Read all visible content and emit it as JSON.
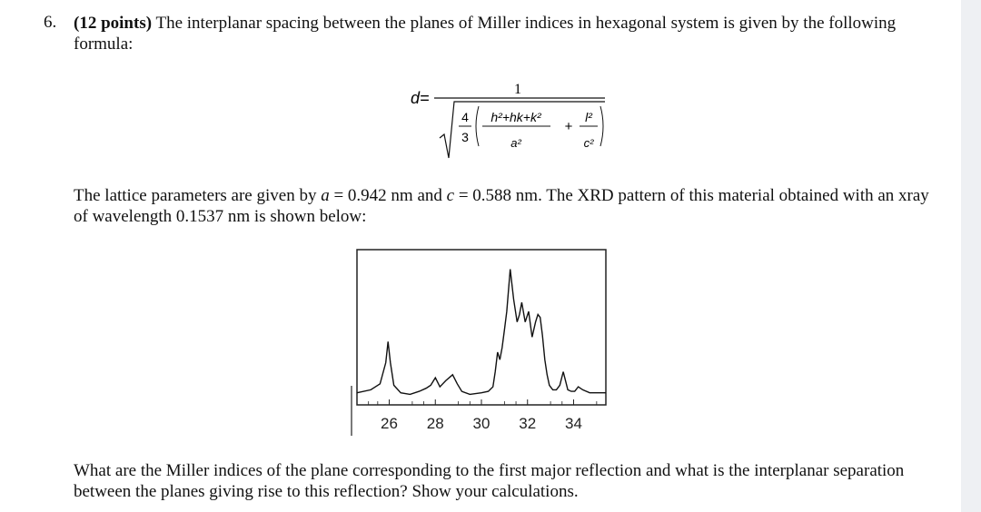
{
  "question": {
    "number": "6.",
    "points": "(12 points)",
    "intro_rest": "The interplanar spacing between the planes of Miller indices in hexagonal system is given by the following formula:",
    "lattice_pre": "The lattice parameters are given by ",
    "a_symbol": "a",
    "a_value": " = 0.942 nm and ",
    "c_symbol": "c",
    "c_value": " = 0.588 nm. The XRD pattern of this material obtained with an xray of wavelength 0.1537 nm is shown below:",
    "final": "What are the Miller indices of the plane corresponding to the first major reflection and what is the interplanar separation between the planes giving rise to this reflection? Show your calculations."
  },
  "formula": {
    "lhs": "d=",
    "numerator": "1",
    "frac_num": "4",
    "frac_den": "3",
    "hkl_num": "h²+hk+k²",
    "a_den": "a²",
    "plus": "+",
    "l_num": "l²",
    "c_den": "c²"
  },
  "chart_data": {
    "type": "line",
    "title": "",
    "xlabel": "",
    "ylabel": "",
    "xlim": [
      24.6,
      35.4
    ],
    "ylim": [
      0,
      1
    ],
    "ticks": [
      "26",
      "28",
      "30",
      "32",
      "34"
    ],
    "tick_values": [
      26,
      28,
      30,
      32,
      34
    ],
    "grid": false,
    "legend": "none",
    "series": [
      {
        "x": [
          24.6,
          25.2,
          25.6,
          25.85,
          25.95,
          26.05,
          26.2,
          26.5,
          26.9,
          27.3,
          27.6,
          27.8,
          28.0,
          28.2,
          28.45,
          28.75,
          28.95,
          29.15,
          29.5,
          30.0,
          30.3,
          30.5,
          30.6,
          30.7,
          30.8,
          30.9,
          31.0,
          31.1,
          31.25,
          31.4,
          31.55,
          31.65,
          31.75,
          31.9,
          32.05,
          32.2,
          32.35,
          32.45,
          32.55,
          32.65,
          32.75,
          32.85,
          32.95,
          33.1,
          33.25,
          33.4,
          33.55,
          33.65,
          33.75,
          33.9,
          34.05,
          34.2,
          34.4,
          34.7,
          35.0,
          35.4
        ],
        "y": [
          0.08,
          0.1,
          0.14,
          0.28,
          0.42,
          0.28,
          0.13,
          0.08,
          0.07,
          0.09,
          0.11,
          0.13,
          0.18,
          0.12,
          0.16,
          0.2,
          0.14,
          0.09,
          0.07,
          0.08,
          0.09,
          0.12,
          0.22,
          0.35,
          0.3,
          0.38,
          0.5,
          0.62,
          0.9,
          0.7,
          0.55,
          0.6,
          0.68,
          0.55,
          0.62,
          0.45,
          0.55,
          0.6,
          0.58,
          0.46,
          0.3,
          0.2,
          0.13,
          0.1,
          0.1,
          0.13,
          0.22,
          0.16,
          0.1,
          0.09,
          0.09,
          0.12,
          0.1,
          0.08,
          0.08,
          0.08
        ]
      }
    ]
  }
}
